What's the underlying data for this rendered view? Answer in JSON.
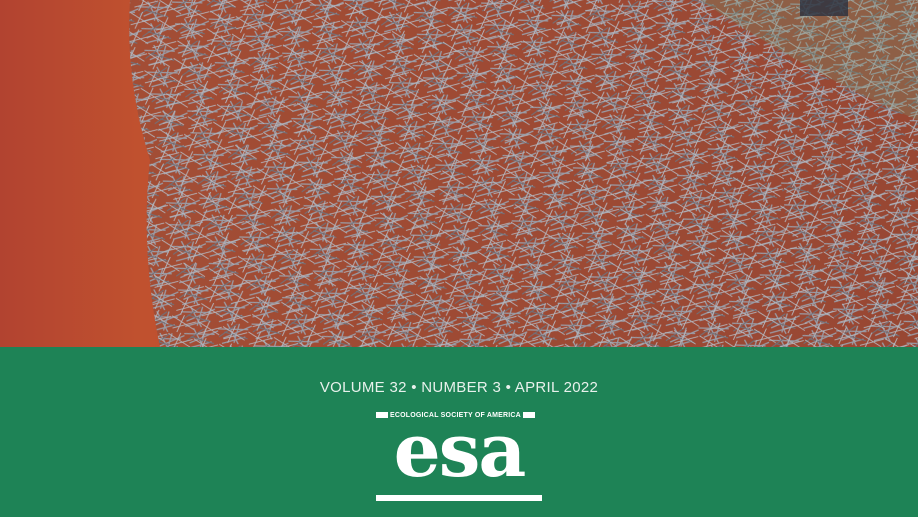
{
  "issue": {
    "line": "VOLUME 32 • NUMBER 3 • APRIL 2022"
  },
  "logo": {
    "society": "ECOLOGICAL SOCIETY OF AMERICA",
    "wordmark": "esa"
  },
  "colors": {
    "banner": "#1e8356",
    "soil": "#b8452e",
    "stubble": "#8d8f97"
  }
}
